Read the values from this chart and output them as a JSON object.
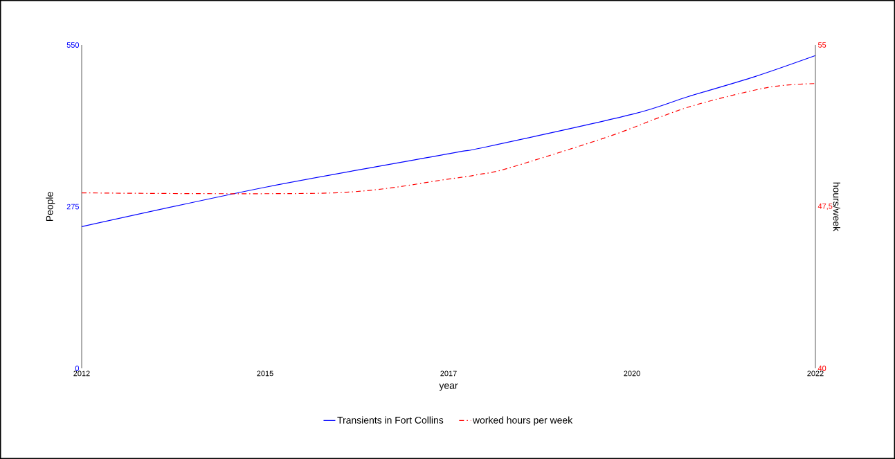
{
  "chart_data": {
    "type": "line",
    "xlabel": "year",
    "ylabel": "People",
    "y2label": "hours/week",
    "xlim": [
      2012,
      2022
    ],
    "xticks": [
      2012,
      {
        "value": 2014.5,
        "label": "2015"
      },
      2017,
      {
        "value": 2019.5,
        "label": "2020"
      },
      2022
    ],
    "ylim": [
      0,
      550
    ],
    "yticks": [
      0,
      275,
      550
    ],
    "y2lim": [
      40,
      55
    ],
    "y2ticks": [
      40,
      {
        "value": 47.5,
        "label": "47,5"
      },
      55
    ],
    "grid": false,
    "legend": "bottom",
    "series": [
      {
        "name": "Transients in Fort Collins",
        "color": "#0000ff",
        "line_style": "solid",
        "x": [
          2012,
          2014.5,
          2017,
          2017.49,
          2019.5,
          2020.26,
          2021.17,
          2022
        ],
        "values": [
          241,
          308,
          365,
          376,
          432,
          462,
          496,
          532
        ]
      },
      {
        "name": "worked hours per week",
        "color": "#ff0000",
        "line_style": "dashdot",
        "axis": "y2",
        "x": [
          2012,
          2015.44,
          2017,
          2017.42,
          2017.81,
          2019.19,
          2020.26,
          2021.35,
          2022
        ],
        "values": [
          48.14,
          48.14,
          48.78,
          49.0,
          49.28,
          50.76,
          52.11,
          53.03,
          53.21
        ]
      }
    ]
  }
}
